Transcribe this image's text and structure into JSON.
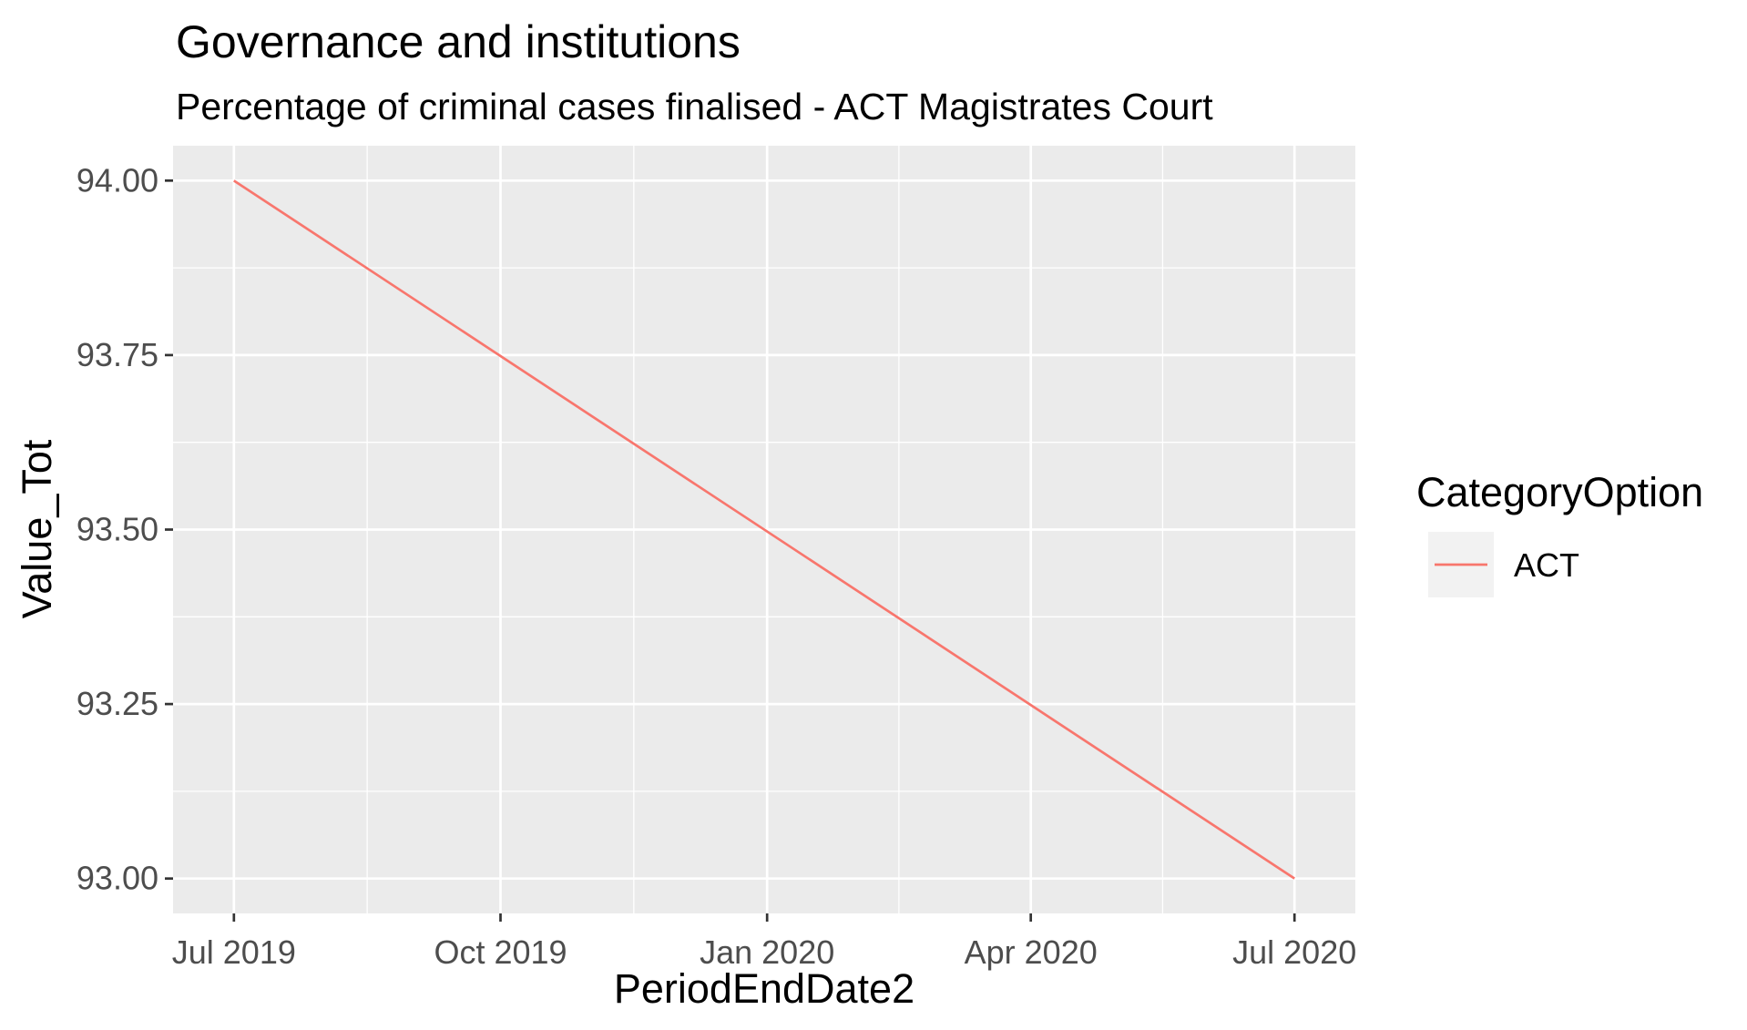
{
  "chart_data": {
    "type": "line",
    "title": "Governance and institutions",
    "subtitle": "Percentage of criminal cases finalised - ACT Magistrates Court",
    "xlabel": "PeriodEndDate2",
    "ylabel": "Value_Tot",
    "x_tick_labels": [
      "Jul 2019",
      "Oct 2019",
      "Jan 2020",
      "Apr 2020",
      "Jul 2020"
    ],
    "x_ticks": [
      "2019-07-01",
      "2019-10-01",
      "2020-01-01",
      "2020-04-01",
      "2020-07-01"
    ],
    "y_tick_labels": [
      "94.00",
      "93.75",
      "93.50",
      "93.25",
      "93.00"
    ],
    "y_ticks": [
      94.0,
      93.75,
      93.5,
      93.25,
      93.0
    ],
    "ylim": [
      92.95,
      94.05
    ],
    "xlim": [
      "2019-06-10",
      "2020-07-22"
    ],
    "grid": true,
    "legend": {
      "title": "CategoryOption",
      "position": "right"
    },
    "series": [
      {
        "name": "ACT",
        "color": "#F8766D",
        "points": [
          {
            "x": "2019-07-01",
            "y": 94.0
          },
          {
            "x": "2020-07-01",
            "y": 93.0
          }
        ]
      }
    ]
  }
}
